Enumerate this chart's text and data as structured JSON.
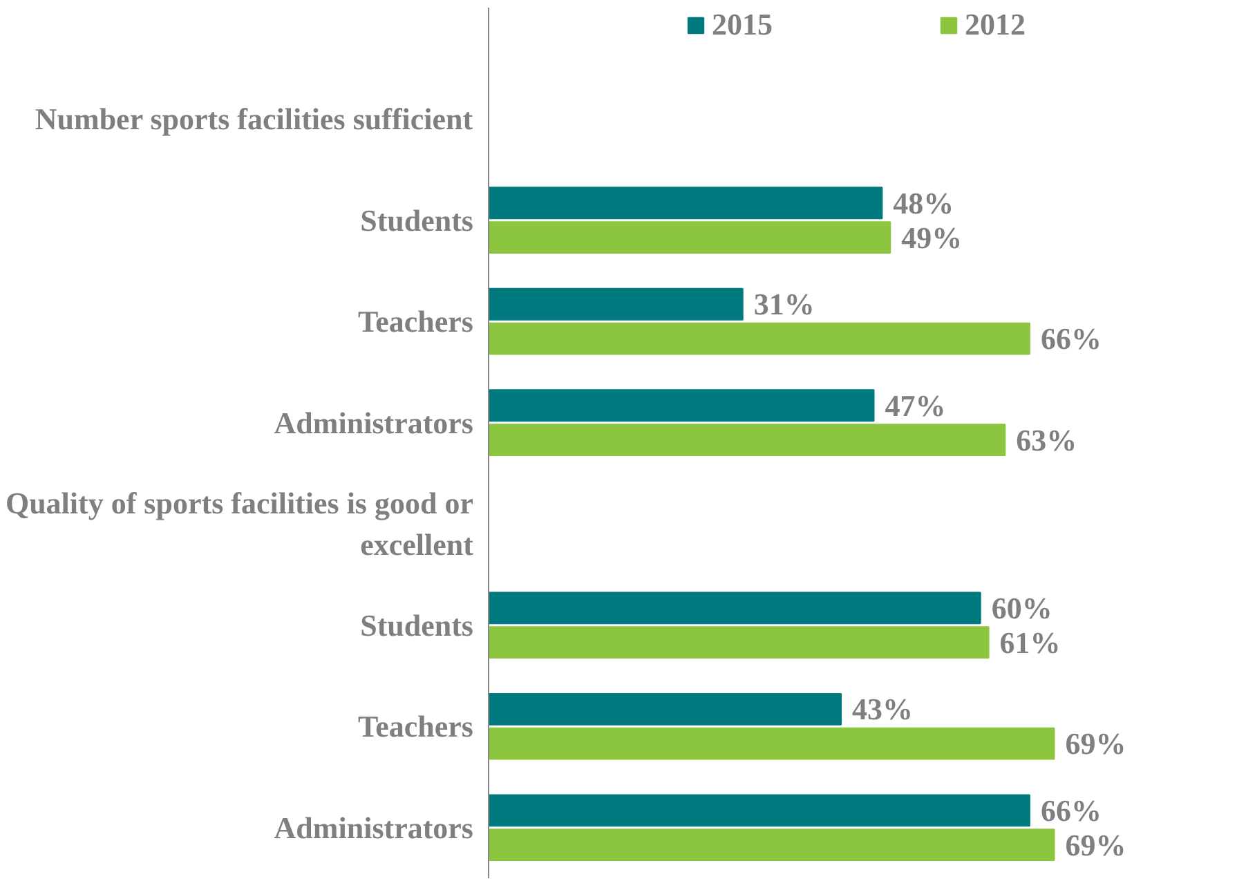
{
  "chart_data": {
    "type": "bar",
    "orientation": "horizontal",
    "categories": [
      "Number sports facilities sufficient",
      "Students",
      "Teachers",
      "Administrators",
      "Quality of sports facilities is good or excellent",
      "Students",
      "Teachers",
      "Administrators"
    ],
    "series": [
      {
        "name": "2015",
        "color": "#007a7f",
        "values": [
          null,
          48,
          31,
          47,
          null,
          60,
          43,
          66
        ],
        "value_labels": [
          null,
          "48%",
          "31%",
          "47%",
          null,
          "60%",
          "43%",
          "66%"
        ]
      },
      {
        "name": "2012",
        "color": "#8cc63f",
        "values": [
          null,
          49,
          66,
          63,
          null,
          61,
          69,
          69
        ],
        "value_labels": [
          null,
          "49%",
          "66%",
          "63%",
          null,
          "61%",
          "69%",
          "69%"
        ]
      }
    ],
    "legend": "top",
    "grid": false,
    "tick_labels": "y"
  }
}
